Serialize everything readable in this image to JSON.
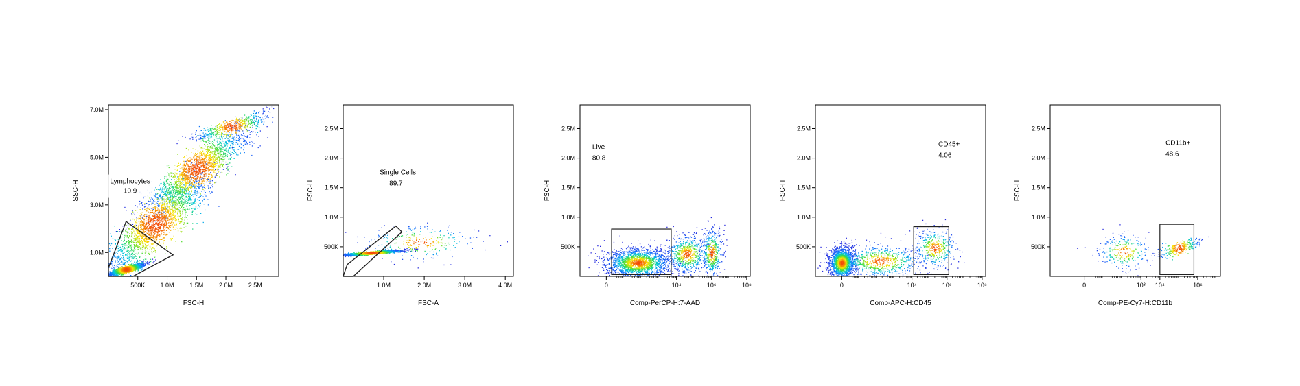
{
  "chart_data": [
    {
      "type": "scatter",
      "ylabel": "SSC-H",
      "xlabel": "FSC-H",
      "x_scale": "linear",
      "xlim": [
        0,
        2900000
      ],
      "ylim": [
        0,
        7200000
      ],
      "x_ticks": [
        {
          "value": 500000,
          "label": "500K"
        },
        {
          "value": 1000000,
          "label": "1.0M"
        },
        {
          "value": 1500000,
          "label": "1.5M"
        },
        {
          "value": 2000000,
          "label": "2.0M"
        },
        {
          "value": 2500000,
          "label": "2.5M"
        }
      ],
      "y_ticks": [
        {
          "value": 1000000,
          "label": "1.0M"
        },
        {
          "value": 3000000,
          "label": "3.0M"
        },
        {
          "value": 5000000,
          "label": "5.0M"
        },
        {
          "value": 7000000,
          "label": "7.0M"
        }
      ],
      "populations": [
        {
          "cx": 300000,
          "cy": 300000,
          "sx": 180000,
          "sy": 250000,
          "n": 1500,
          "rot": 0.5
        },
        {
          "cx": 800000,
          "cy": 2200000,
          "sx": 600000,
          "sy": 1500000,
          "n": 2200,
          "rot": 0.75
        },
        {
          "cx": 1500000,
          "cy": 4500000,
          "sx": 550000,
          "sy": 1300000,
          "n": 1800,
          "rot": 0.7
        },
        {
          "cx": 2100000,
          "cy": 6300000,
          "sx": 350000,
          "sy": 600000,
          "n": 500,
          "rot": 0.4
        }
      ],
      "gate": {
        "shape": "polygon",
        "points": [
          [
            0,
            0
          ],
          [
            0,
            350000
          ],
          [
            300000,
            2300000
          ],
          [
            1100000,
            900000
          ],
          [
            420000,
            0
          ]
        ],
        "name": "Lymphocytes",
        "value": "10.9",
        "label_at": [
          370000,
          3900000
        ]
      }
    },
    {
      "type": "scatter",
      "ylabel": "FSC-H",
      "xlabel": "FSC-A",
      "x_scale": "linear",
      "xlim": [
        0,
        4200000
      ],
      "ylim": [
        0,
        2900000
      ],
      "x_ticks": [
        {
          "value": 1000000,
          "label": "1.0M"
        },
        {
          "value": 2000000,
          "label": "2.0M"
        },
        {
          "value": 3000000,
          "label": "3.0M"
        },
        {
          "value": 4000000,
          "label": "4.0M"
        }
      ],
      "y_ticks": [
        {
          "value": 500000,
          "label": "500K"
        },
        {
          "value": 1000000,
          "label": "1.0M"
        },
        {
          "value": 1500000,
          "label": "1.5M"
        },
        {
          "value": 2000000,
          "label": "2.0M"
        },
        {
          "value": 2500000,
          "label": "2.5M"
        }
      ],
      "populations": [
        {
          "cx": 700000,
          "cy": 400000,
          "sx": 400000,
          "sy": 40000,
          "n": 1600,
          "rot": 0.55
        },
        {
          "cx": 1900000,
          "cy": 580000,
          "sx": 700000,
          "sy": 150000,
          "n": 250,
          "rot": 0.0
        }
      ],
      "gate": {
        "shape": "polygon",
        "points": [
          [
            0,
            0
          ],
          [
            100000,
            200000
          ],
          [
            1300000,
            850000
          ],
          [
            1450000,
            750000
          ],
          [
            250000,
            0
          ]
        ],
        "name": "Single Cells",
        "value": "89.7",
        "label_at": [
          900000,
          1720000
        ]
      }
    },
    {
      "type": "scatter",
      "ylabel": "FSC-H",
      "xlabel": "Comp-PerCP-H:7-AAD",
      "x_scale": "biex",
      "xlim": [
        -1.5,
        8.2
      ],
      "ylim": [
        0,
        2900000
      ],
      "x_ticks": [
        {
          "value": 0,
          "label": "0"
        },
        {
          "value": 4,
          "label": "10⁴"
        },
        {
          "value": 6,
          "label": "10⁶"
        },
        {
          "value": 8,
          "label": "10⁸"
        }
      ],
      "y_ticks": [
        {
          "value": 500000,
          "label": "500K"
        },
        {
          "value": 1000000,
          "label": "1.0M"
        },
        {
          "value": 1500000,
          "label": "1.5M"
        },
        {
          "value": 2000000,
          "label": "2.0M"
        },
        {
          "value": 2500000,
          "label": "2.5M"
        }
      ],
      "populations": [
        {
          "cx": 1.8,
          "cy": 230000,
          "sx": 0.9,
          "sy": 120000,
          "n": 1900,
          "rot": 0
        },
        {
          "cx": 4.6,
          "cy": 380000,
          "sx": 0.6,
          "sy": 160000,
          "n": 650,
          "rot": 0
        },
        {
          "cx": 6.0,
          "cy": 400000,
          "sx": 0.3,
          "sy": 200000,
          "n": 450,
          "rot": 0
        }
      ],
      "gate": {
        "shape": "rect",
        "x": [
          0.3,
          3.7
        ],
        "y": [
          30000,
          800000
        ],
        "name": "Live",
        "value": "80.8",
        "label_at": [
          -0.8,
          2150000
        ]
      }
    },
    {
      "type": "scatter",
      "ylabel": "FSC-H",
      "xlabel": "Comp-APC-H:CD45",
      "x_scale": "biex",
      "xlim": [
        -1.5,
        8.2
      ],
      "ylim": [
        0,
        2900000
      ],
      "x_ticks": [
        {
          "value": 0,
          "label": "0"
        },
        {
          "value": 4,
          "label": "10⁴"
        },
        {
          "value": 6,
          "label": "10⁶"
        },
        {
          "value": 8,
          "label": "10⁸"
        }
      ],
      "y_ticks": [
        {
          "value": 500000,
          "label": "500K"
        },
        {
          "value": 1000000,
          "label": "1.0M"
        },
        {
          "value": 1500000,
          "label": "1.5M"
        },
        {
          "value": 2000000,
          "label": "2.0M"
        },
        {
          "value": 2500000,
          "label": "2.5M"
        }
      ],
      "populations": [
        {
          "cx": 0.0,
          "cy": 230000,
          "sx": 0.35,
          "sy": 130000,
          "n": 1800,
          "rot": 0
        },
        {
          "cx": 2.2,
          "cy": 260000,
          "sx": 1.2,
          "sy": 140000,
          "n": 700,
          "rot": 0
        },
        {
          "cx": 5.3,
          "cy": 480000,
          "sx": 0.6,
          "sy": 170000,
          "n": 400,
          "rot": 0
        }
      ],
      "gate": {
        "shape": "rect",
        "x": [
          4.1,
          6.1
        ],
        "y": [
          30000,
          840000
        ],
        "name": "CD45+",
        "value": "4.06",
        "label_at": [
          5.5,
          2200000
        ]
      }
    },
    {
      "type": "scatter",
      "ylabel": "FSC-H",
      "xlabel": "Comp-PE-Cy7-H:CD11b",
      "x_scale": "biex",
      "xlim": [
        -1.8,
        7.2
      ],
      "ylim": [
        0,
        2900000
      ],
      "x_ticks": [
        {
          "value": 0,
          "label": "0"
        },
        {
          "value": 3,
          "label": "10³"
        },
        {
          "value": 4,
          "label": "10⁴"
        },
        {
          "value": 6,
          "label": "10⁶"
        }
      ],
      "y_ticks": [
        {
          "value": 500000,
          "label": "500K"
        },
        {
          "value": 1000000,
          "label": "1.0M"
        },
        {
          "value": 1500000,
          "label": "1.5M"
        },
        {
          "value": 2000000,
          "label": "2.0M"
        },
        {
          "value": 2500000,
          "label": "2.5M"
        }
      ],
      "populations": [
        {
          "cx": 2.1,
          "cy": 420000,
          "sx": 0.7,
          "sy": 150000,
          "n": 250,
          "rot": 0
        },
        {
          "cx": 5.0,
          "cy": 480000,
          "sx": 0.6,
          "sy": 200000,
          "n": 280,
          "rot": 0.3
        }
      ],
      "gate": {
        "shape": "rect",
        "x": [
          4.0,
          5.8
        ],
        "y": [
          30000,
          880000
        ],
        "name": "CD11b+",
        "value": "48.6",
        "label_at": [
          4.3,
          2220000
        ]
      }
    }
  ]
}
